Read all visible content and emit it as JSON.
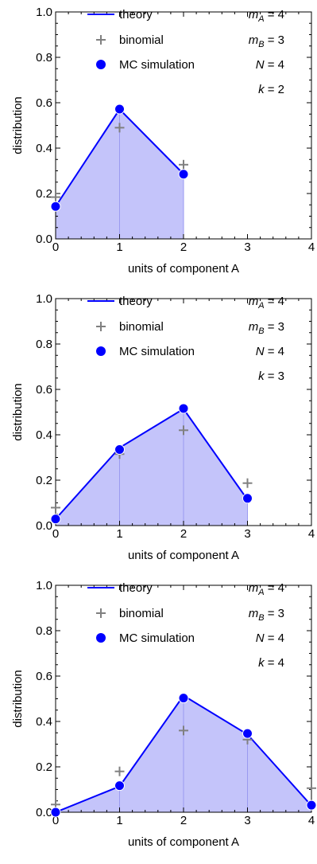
{
  "chart_data": [
    {
      "type": "line",
      "xlabel": "units of component A",
      "ylabel": "distribution",
      "xlim": [
        0,
        4
      ],
      "ylim": [
        0,
        1.0
      ],
      "x_ticks": [
        "0",
        "1",
        "2",
        "3",
        "4"
      ],
      "y_ticks": [
        "0.0",
        "0.2",
        "0.4",
        "0.6",
        "0.8",
        "1.0"
      ],
      "legend_position": "top",
      "series": [
        {
          "name": "theory",
          "kind": "line-area",
          "color": "#0000ff",
          "x": [
            0,
            1,
            2
          ],
          "y": [
            0.143,
            0.571,
            0.286
          ]
        },
        {
          "name": "binomial",
          "kind": "cross",
          "color": "#808080",
          "x": [
            0,
            1,
            2
          ],
          "y": [
            0.184,
            0.49,
            0.327
          ]
        },
        {
          "name": "MC simulation",
          "kind": "dot",
          "color": "#0000ff",
          "x": [
            0,
            1,
            2
          ],
          "y": [
            0.143,
            0.572,
            0.285
          ]
        }
      ],
      "params": [
        {
          "label": "m",
          "sub": "A",
          "value": "= 4"
        },
        {
          "label": "m",
          "sub": "B",
          "value": "= 3"
        },
        {
          "label": "N",
          "sub": "",
          "value": "= 4"
        },
        {
          "label": "k",
          "sub": "",
          "value": "= 2"
        }
      ]
    },
    {
      "type": "line",
      "xlabel": "units of component A",
      "ylabel": "distribution",
      "xlim": [
        0,
        4
      ],
      "ylim": [
        0,
        1.0
      ],
      "x_ticks": [
        "0",
        "1",
        "2",
        "3",
        "4"
      ],
      "y_ticks": [
        "0.0",
        "0.2",
        "0.4",
        "0.6",
        "0.8",
        "1.0"
      ],
      "legend_position": "top",
      "series": [
        {
          "name": "theory",
          "kind": "line-area",
          "color": "#0000ff",
          "x": [
            0,
            1,
            2,
            3
          ],
          "y": [
            0.029,
            0.343,
            0.514,
            0.114
          ]
        },
        {
          "name": "binomial",
          "kind": "cross",
          "color": "#808080",
          "x": [
            0,
            1,
            2,
            3
          ],
          "y": [
            0.079,
            0.315,
            0.42,
            0.187
          ]
        },
        {
          "name": "MC simulation",
          "kind": "dot",
          "color": "#0000ff",
          "x": [
            0,
            1,
            2,
            3
          ],
          "y": [
            0.029,
            0.335,
            0.516,
            0.12
          ]
        }
      ],
      "params": [
        {
          "label": "m",
          "sub": "A",
          "value": "= 4"
        },
        {
          "label": "m",
          "sub": "B",
          "value": "= 3"
        },
        {
          "label": "N",
          "sub": "",
          "value": "= 4"
        },
        {
          "label": "k",
          "sub": "",
          "value": "= 3"
        }
      ]
    },
    {
      "type": "line",
      "xlabel": "units of component A",
      "ylabel": "distribution",
      "xlim": [
        0,
        4
      ],
      "ylim": [
        0,
        1.0
      ],
      "x_ticks": [
        "0",
        "1",
        "2",
        "3",
        "4"
      ],
      "y_ticks": [
        "0.0",
        "0.2",
        "0.4",
        "0.6",
        "0.8",
        "1.0"
      ],
      "legend_position": "top",
      "series": [
        {
          "name": "theory",
          "kind": "line-area",
          "color": "#0000ff",
          "x": [
            0,
            1,
            2,
            3,
            4
          ],
          "y": [
            0.0,
            0.114,
            0.514,
            0.343,
            0.029
          ]
        },
        {
          "name": "binomial",
          "kind": "cross",
          "color": "#808080",
          "x": [
            0,
            1,
            2,
            3,
            4
          ],
          "y": [
            0.034,
            0.18,
            0.36,
            0.32,
            0.106
          ]
        },
        {
          "name": "MC simulation",
          "kind": "dot",
          "color": "#0000ff",
          "x": [
            0,
            1,
            2,
            3,
            4
          ],
          "y": [
            0.0,
            0.117,
            0.503,
            0.347,
            0.031
          ]
        }
      ],
      "params": [
        {
          "label": "m",
          "sub": "A",
          "value": "= 4"
        },
        {
          "label": "m",
          "sub": "B",
          "value": "= 3"
        },
        {
          "label": "N",
          "sub": "",
          "value": "= 4"
        },
        {
          "label": "k",
          "sub": "",
          "value": "= 4"
        }
      ]
    }
  ]
}
